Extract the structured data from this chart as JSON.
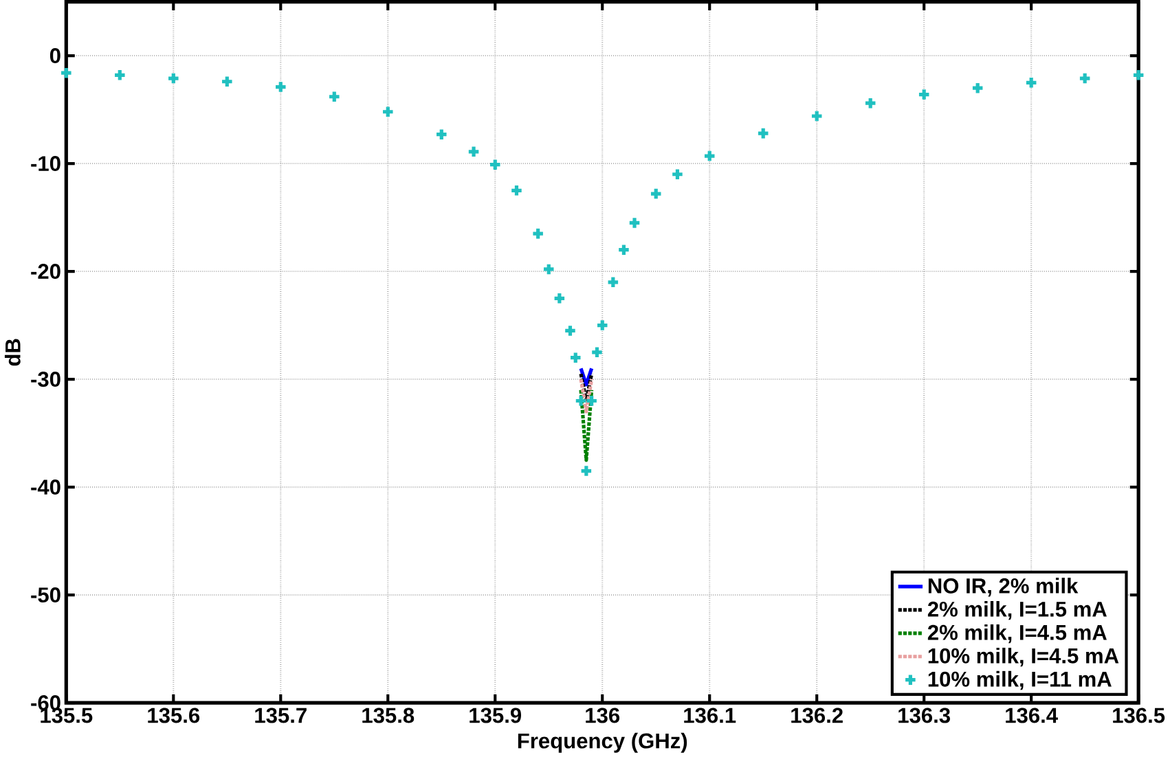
{
  "chart_data": {
    "type": "line",
    "xlabel": "Frequency (GHz)",
    "ylabel": "dB",
    "x": [
      135.5,
      135.55,
      135.6,
      135.65,
      135.7,
      135.75,
      135.8,
      135.85,
      135.88,
      135.9,
      135.92,
      135.94,
      135.95,
      135.96,
      135.97,
      135.975,
      135.98,
      135.985,
      135.99,
      135.995,
      136.0,
      136.01,
      136.02,
      136.03,
      136.05,
      136.07,
      136.1,
      136.15,
      136.2,
      136.25,
      136.3,
      136.35,
      136.4,
      136.45,
      136.5
    ],
    "series": [
      {
        "name": "NO IR, 2% milk",
        "color": "#0000ff",
        "line_style": "solid",
        "values": [
          null,
          null,
          null,
          null,
          null,
          null,
          null,
          null,
          null,
          null,
          null,
          null,
          null,
          null,
          null,
          null,
          -29,
          -30.5,
          -29,
          null,
          null,
          null,
          null,
          null,
          null,
          null,
          null,
          null,
          null,
          null,
          null,
          null,
          null,
          null,
          null
        ]
      },
      {
        "name": "2% milk, I=1.5 mA",
        "color": "#000000",
        "line_style": "dotted",
        "values": [
          null,
          null,
          null,
          null,
          null,
          null,
          null,
          null,
          null,
          null,
          null,
          null,
          null,
          null,
          null,
          null,
          -29.5,
          -32,
          -29.5,
          null,
          null,
          null,
          null,
          null,
          null,
          null,
          null,
          null,
          null,
          null,
          null,
          null,
          null,
          null,
          null
        ]
      },
      {
        "name": "2% milk, I=4.5 mA",
        "color": "#008000",
        "line_style": "dotted",
        "values": [
          null,
          null,
          null,
          null,
          null,
          null,
          null,
          null,
          null,
          null,
          null,
          null,
          null,
          null,
          null,
          null,
          -31,
          -37.5,
          -31,
          null,
          null,
          null,
          null,
          null,
          null,
          null,
          null,
          null,
          null,
          null,
          null,
          null,
          null,
          null,
          null
        ]
      },
      {
        "name": "10% milk, I=4.5 mA",
        "color": "#e8a0a0",
        "line_style": "dotted",
        "values": [
          null,
          null,
          null,
          null,
          null,
          null,
          null,
          null,
          null,
          null,
          null,
          null,
          null,
          null,
          null,
          null,
          -30,
          -33,
          -30,
          null,
          null,
          null,
          null,
          null,
          null,
          null,
          null,
          null,
          null,
          null,
          null,
          null,
          null,
          null,
          null
        ]
      },
      {
        "name": "10% milk, I=11 mA",
        "type": "scatter",
        "color": "#20c0c0",
        "marker": "cross",
        "values": [
          -1.6,
          -1.8,
          -2.1,
          -2.4,
          -2.9,
          -3.8,
          -5.2,
          -7.3,
          -8.9,
          -10.1,
          -12.5,
          -16.5,
          -19.8,
          -22.5,
          -25.5,
          -28,
          -32,
          -38.5,
          -32,
          -27.5,
          -25,
          -21,
          -18,
          -15.5,
          -12.8,
          -11,
          -9.3,
          -7.2,
          -5.6,
          -4.4,
          -3.6,
          -3,
          -2.5,
          -2.1,
          -1.8
        ]
      }
    ],
    "xlim": [
      135.5,
      136.5
    ],
    "xticks": [
      135.5,
      135.6,
      135.7,
      135.8,
      135.9,
      136,
      136.1,
      136.2,
      136.3,
      136.4,
      136.5
    ],
    "ylim": [
      -60,
      5
    ],
    "yticks": [
      -60,
      -50,
      -40,
      -30,
      -20,
      -10,
      0
    ],
    "grid": true,
    "legend": "bottom right"
  }
}
